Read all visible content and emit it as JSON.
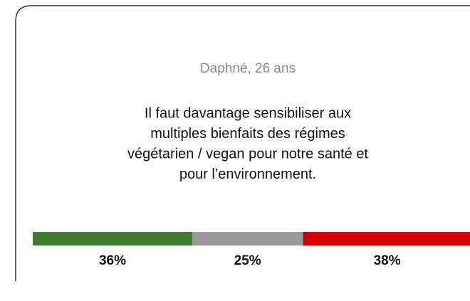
{
  "card": {
    "author": "Daphné, 26 ans",
    "quote_lines": [
      "Il faut davantage sensibiliser aux",
      "multiples bienfaits des régimes",
      "végétarien / vegan pour notre santé et",
      "pour l’environnement."
    ],
    "results": [
      {
        "value": 36,
        "label": "36%",
        "color": "#3d7f2c"
      },
      {
        "value": 25,
        "label": "25%",
        "color": "#9b9b9b"
      },
      {
        "value": 38,
        "label": "38%",
        "color": "#d10000"
      }
    ]
  }
}
